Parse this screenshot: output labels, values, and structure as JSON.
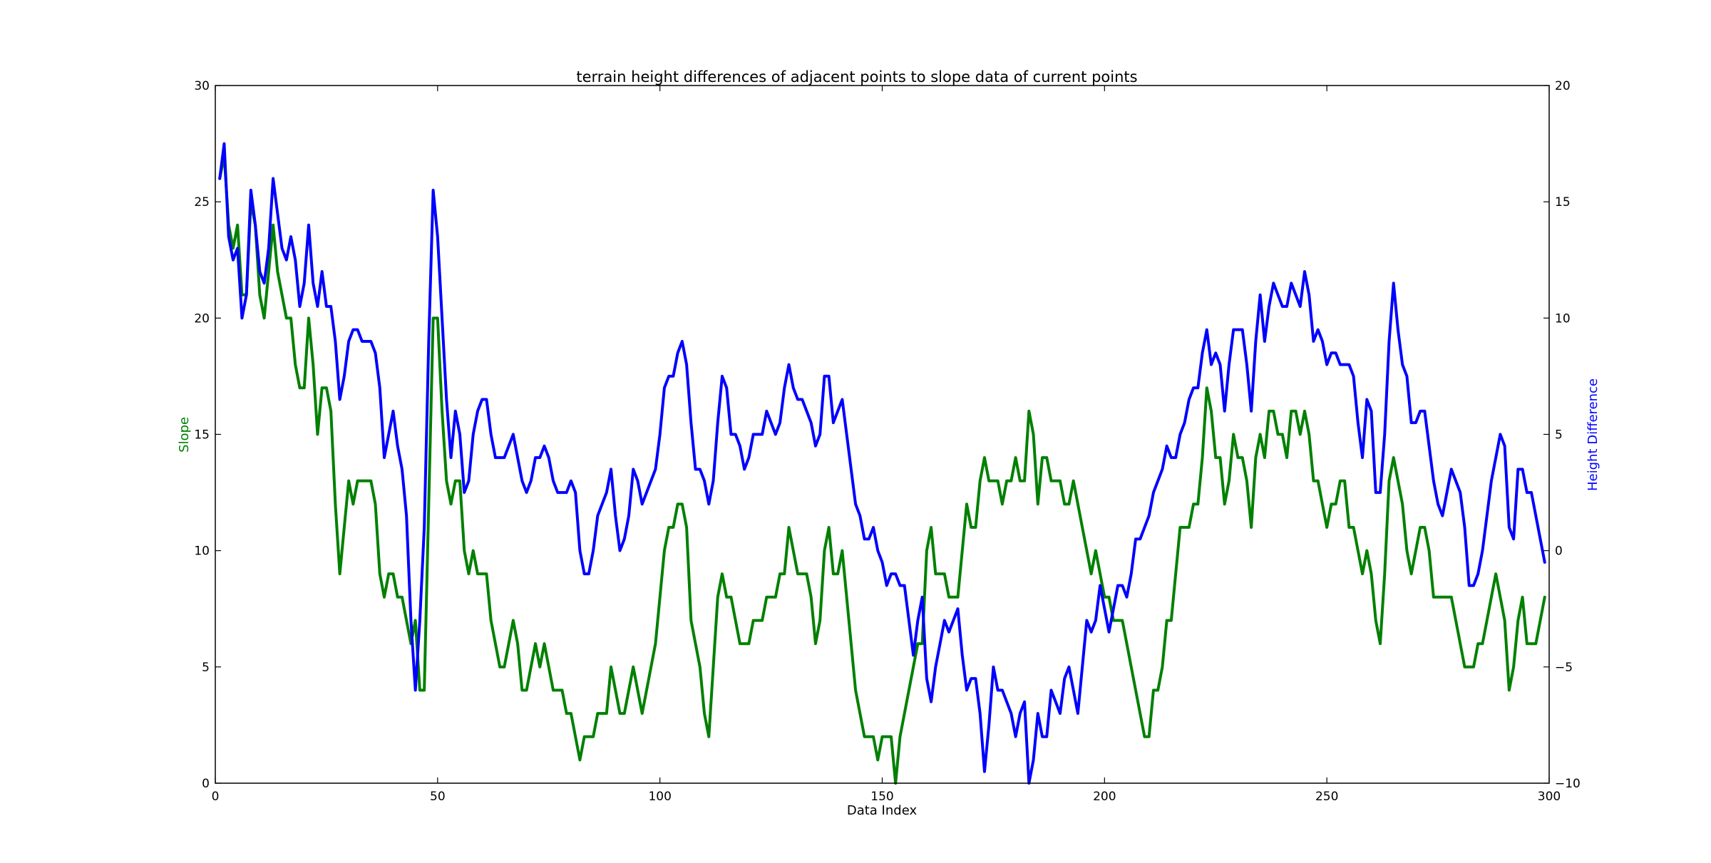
{
  "chart_data": {
    "type": "line",
    "title": "terrain height differences of adjacent points to slope data of current points",
    "xlabel": "Data Index",
    "ylabel_left": "Slope",
    "ylabel_right": "Height Difference",
    "xlim": [
      0,
      300
    ],
    "ylim_left": [
      0,
      30
    ],
    "ylim_right": [
      -10,
      20
    ],
    "xticks": [
      0,
      50,
      100,
      150,
      200,
      250,
      300
    ],
    "yticks_left": [
      0,
      5,
      10,
      15,
      20,
      25,
      30
    ],
    "yticks_right": [
      -10,
      -5,
      0,
      5,
      10,
      15,
      20
    ],
    "grid": false,
    "colors": {
      "slope": "#008000",
      "height_difference": "#0000ff"
    },
    "series": [
      {
        "axis": "left",
        "color": "#008000",
        "x": [
          1,
          2,
          3,
          4,
          5,
          6,
          7,
          8,
          9,
          10,
          11,
          12,
          13,
          14,
          15,
          16,
          17,
          18,
          19,
          20,
          21,
          22,
          23,
          24,
          25,
          26,
          27,
          28,
          29,
          30,
          31,
          32,
          33,
          34,
          35,
          36,
          37,
          38,
          39,
          40,
          41,
          42,
          43,
          44,
          45,
          46,
          47,
          48,
          49,
          50,
          51,
          52,
          53,
          54,
          55,
          56,
          57,
          58,
          59,
          60,
          61,
          62,
          63,
          64,
          65,
          66,
          67,
          68,
          69,
          70,
          71,
          72,
          73,
          74,
          75,
          76,
          77,
          78,
          79,
          80,
          81,
          82,
          83,
          84,
          85,
          86,
          87,
          88,
          89,
          90,
          91,
          92,
          93,
          94,
          95,
          96,
          97,
          98,
          99,
          100,
          101,
          102,
          103,
          104,
          105,
          106,
          107,
          108,
          109,
          110,
          111,
          112,
          113,
          114,
          115,
          116,
          117,
          118,
          119,
          120,
          121,
          122,
          123,
          124,
          125,
          126,
          127,
          128,
          129,
          130,
          131,
          132,
          133,
          134,
          135,
          136,
          137,
          138,
          139,
          140,
          141,
          142,
          143,
          144,
          145,
          146,
          147,
          148,
          149,
          150,
          151,
          152,
          153,
          154,
          155,
          156,
          157,
          158,
          159,
          160,
          161,
          162,
          163,
          164,
          165,
          166,
          167,
          168,
          169,
          170,
          171,
          172,
          173,
          174,
          175,
          176,
          177,
          178,
          179,
          180,
          181,
          182,
          183,
          184,
          185,
          186,
          187,
          188,
          189,
          190,
          191,
          192,
          193,
          194,
          195,
          196,
          197,
          198,
          199,
          200,
          201,
          202,
          203,
          204,
          205,
          206,
          207,
          208,
          209,
          210,
          211,
          212,
          213,
          214,
          215,
          216,
          217,
          218,
          219,
          220,
          221,
          222,
          223,
          224,
          225,
          226,
          227,
          228,
          229,
          230,
          231,
          232,
          233,
          234,
          235,
          236,
          237,
          238,
          239,
          240,
          241,
          242,
          243,
          244,
          245,
          246,
          247,
          248,
          249,
          250,
          251,
          252,
          253,
          254,
          255,
          256,
          257,
          258,
          259,
          260,
          261,
          262,
          263,
          264,
          265,
          266,
          267,
          268,
          269,
          270,
          271,
          272,
          273,
          274,
          275,
          276,
          277,
          278,
          279,
          280,
          281,
          282,
          283,
          284,
          285,
          286,
          287,
          288,
          289,
          290,
          291,
          292,
          293,
          294,
          295,
          296,
          297,
          298,
          299
        ],
        "y": [
          26,
          27,
          24,
          23,
          24,
          21,
          21,
          25,
          24,
          21,
          20,
          22,
          24,
          22,
          21,
          20,
          20,
          18,
          17,
          17,
          20,
          18,
          15,
          17,
          17,
          16,
          12,
          9,
          11,
          13,
          12,
          13,
          13,
          13,
          13,
          12,
          9,
          8,
          9,
          9,
          8,
          8,
          7,
          6,
          7,
          4,
          4,
          12,
          20,
          20,
          16,
          13,
          12,
          13,
          13,
          10,
          9,
          10,
          9,
          9,
          9,
          7,
          6,
          5,
          5,
          6,
          7,
          6,
          4,
          4,
          5,
          6,
          5,
          6,
          5,
          4,
          4,
          4,
          3,
          3,
          2,
          1,
          2,
          2,
          2,
          3,
          3,
          3,
          5,
          4,
          3,
          3,
          4,
          5,
          4,
          3,
          4,
          5,
          6,
          8,
          10,
          11,
          11,
          12,
          12,
          11,
          7,
          6,
          5,
          3,
          2,
          5,
          8,
          9,
          8,
          8,
          7,
          6,
          6,
          6,
          7,
          7,
          7,
          8,
          8,
          8,
          9,
          9,
          11,
          10,
          9,
          9,
          9,
          8,
          6,
          7,
          10,
          11,
          9,
          9,
          10,
          8,
          6,
          4,
          3,
          2,
          2,
          2,
          1,
          2,
          2,
          2,
          0,
          2,
          3,
          4,
          5,
          6,
          6,
          10,
          11,
          9,
          9,
          9,
          8,
          8,
          8,
          10,
          12,
          11,
          11,
          13,
          14,
          13,
          13,
          13,
          12,
          13,
          13,
          14,
          13,
          13,
          16,
          15,
          12,
          14,
          14,
          13,
          13,
          13,
          12,
          12,
          13,
          12,
          11,
          10,
          9,
          10,
          9,
          8,
          8,
          7,
          7,
          7,
          6,
          5,
          4,
          3,
          2,
          2,
          4,
          4,
          5,
          7,
          7,
          9,
          11,
          11,
          11,
          12,
          12,
          14,
          17,
          16,
          14,
          14,
          12,
          13,
          15,
          14,
          14,
          13,
          11,
          14,
          15,
          14,
          16,
          16,
          15,
          15,
          14,
          16,
          16,
          15,
          16,
          15,
          13,
          13,
          12,
          11,
          12,
          12,
          13,
          13,
          11,
          11,
          10,
          9,
          10,
          9,
          7,
          6,
          9,
          13,
          14,
          13,
          12,
          10,
          9,
          10,
          11,
          11,
          10,
          8,
          8,
          8,
          8,
          8,
          7,
          6,
          5,
          5,
          5,
          6,
          6,
          7,
          8,
          9,
          8,
          7,
          4,
          5,
          7,
          8,
          6,
          6,
          6,
          7,
          8
        ]
      },
      {
        "axis": "right",
        "color": "#0000ff",
        "x": [
          1,
          2,
          3,
          4,
          5,
          6,
          7,
          8,
          9,
          10,
          11,
          12,
          13,
          14,
          15,
          16,
          17,
          18,
          19,
          20,
          21,
          22,
          23,
          24,
          25,
          26,
          27,
          28,
          29,
          30,
          31,
          32,
          33,
          34,
          35,
          36,
          37,
          38,
          39,
          40,
          41,
          42,
          43,
          44,
          45,
          46,
          47,
          48,
          49,
          50,
          51,
          52,
          53,
          54,
          55,
          56,
          57,
          58,
          59,
          60,
          61,
          62,
          63,
          64,
          65,
          66,
          67,
          68,
          69,
          70,
          71,
          72,
          73,
          74,
          75,
          76,
          77,
          78,
          79,
          80,
          81,
          82,
          83,
          84,
          85,
          86,
          87,
          88,
          89,
          90,
          91,
          92,
          93,
          94,
          95,
          96,
          97,
          98,
          99,
          100,
          101,
          102,
          103,
          104,
          105,
          106,
          107,
          108,
          109,
          110,
          111,
          112,
          113,
          114,
          115,
          116,
          117,
          118,
          119,
          120,
          121,
          122,
          123,
          124,
          125,
          126,
          127,
          128,
          129,
          130,
          131,
          132,
          133,
          134,
          135,
          136,
          137,
          138,
          139,
          140,
          141,
          142,
          143,
          144,
          145,
          146,
          147,
          148,
          149,
          150,
          151,
          152,
          153,
          154,
          155,
          156,
          157,
          158,
          159,
          160,
          161,
          162,
          163,
          164,
          165,
          166,
          167,
          168,
          169,
          170,
          171,
          172,
          173,
          174,
          175,
          176,
          177,
          178,
          179,
          180,
          181,
          182,
          183,
          184,
          185,
          186,
          187,
          188,
          189,
          190,
          191,
          192,
          193,
          194,
          195,
          196,
          197,
          198,
          199,
          200,
          201,
          202,
          203,
          204,
          205,
          206,
          207,
          208,
          209,
          210,
          211,
          212,
          213,
          214,
          215,
          216,
          217,
          218,
          219,
          220,
          221,
          222,
          223,
          224,
          225,
          226,
          227,
          228,
          229,
          230,
          231,
          232,
          233,
          234,
          235,
          236,
          237,
          238,
          239,
          240,
          241,
          242,
          243,
          244,
          245,
          246,
          247,
          248,
          249,
          250,
          251,
          252,
          253,
          254,
          255,
          256,
          257,
          258,
          259,
          260,
          261,
          262,
          263,
          264,
          265,
          266,
          267,
          268,
          269,
          270,
          271,
          272,
          273,
          274,
          275,
          276,
          277,
          278,
          279,
          280,
          281,
          282,
          283,
          284,
          285,
          286,
          287,
          288,
          289,
          290,
          291,
          292,
          293,
          294,
          295,
          296,
          297,
          298,
          299
        ],
        "y": [
          16,
          17.5,
          13.5,
          12.5,
          13,
          10,
          11,
          15.5,
          14,
          12,
          11.5,
          13,
          16,
          14.5,
          13,
          12.5,
          13.5,
          12.5,
          10.5,
          11.5,
          14,
          11.5,
          10.5,
          12,
          10.5,
          10.5,
          9,
          6.5,
          7.5,
          9,
          9.5,
          9.5,
          9,
          9,
          9,
          8.5,
          7,
          4,
          5,
          6,
          4.5,
          3.5,
          1.5,
          -3,
          -6,
          -3,
          1,
          9,
          15.5,
          13.5,
          10,
          6.5,
          4,
          6,
          5,
          2.5,
          3,
          5,
          6,
          6.5,
          6.5,
          5,
          4,
          4,
          4,
          4.5,
          5,
          4,
          3,
          2.5,
          3,
          4,
          4,
          4.5,
          4,
          3,
          2.5,
          2.5,
          2.5,
          3,
          2.5,
          0,
          -1,
          -1,
          0,
          1.5,
          2,
          2.5,
          3.5,
          1.5,
          0,
          0.5,
          1.5,
          3.5,
          3,
          2,
          2.5,
          3,
          3.5,
          5,
          7,
          7.5,
          7.5,
          8.5,
          9,
          8,
          5.5,
          3.5,
          3.5,
          3,
          2,
          3,
          5.5,
          7.5,
          7,
          5,
          5,
          4.5,
          3.5,
          4,
          5,
          5,
          5,
          6,
          5.5,
          5,
          5.5,
          7,
          8,
          7,
          6.5,
          6.5,
          6,
          5.5,
          4.5,
          5,
          7.5,
          7.5,
          5.5,
          6,
          6.5,
          5,
          3.5,
          2,
          1.5,
          0.5,
          0.5,
          1,
          0,
          -0.5,
          -1.5,
          -1,
          -1,
          -1.5,
          -1.5,
          -3,
          -4.5,
          -3,
          -2,
          -5.5,
          -6.5,
          -5,
          -4,
          -3,
          -3.5,
          -3,
          -2.5,
          -4.5,
          -6,
          -5.5,
          -5.5,
          -7,
          -9.5,
          -7.5,
          -5,
          -6,
          -6,
          -6.5,
          -7,
          -8,
          -7,
          -6.5,
          -10,
          -9,
          -7,
          -8,
          -8,
          -6,
          -6.5,
          -7,
          -5.5,
          -5,
          -6,
          -7,
          -5,
          -3,
          -3.5,
          -3,
          -1.5,
          -2.5,
          -3.5,
          -2.5,
          -1.5,
          -1.5,
          -2,
          -1,
          0.5,
          0.5,
          1,
          1.5,
          2.5,
          3,
          3.5,
          4.5,
          4,
          4,
          5,
          5.5,
          6.5,
          7,
          7,
          8.5,
          9.5,
          8,
          8.5,
          8,
          6,
          8,
          9.5,
          9.5,
          9.5,
          8,
          6,
          9,
          11,
          9,
          10.5,
          11.5,
          11,
          10.5,
          10.5,
          11.5,
          11,
          10.5,
          12,
          11,
          9,
          9.5,
          9,
          8,
          8.5,
          8.5,
          8,
          8,
          8,
          7.5,
          5.5,
          4,
          6.5,
          6,
          2.5,
          2.5,
          5,
          9,
          11.5,
          9.5,
          8,
          7.5,
          5.5,
          5.5,
          6,
          6,
          4.5,
          3,
          2,
          1.5,
          2.5,
          3.5,
          3,
          2.5,
          1,
          -1.5,
          -1.5,
          -1,
          0,
          1.5,
          3,
          4,
          5,
          4.5,
          1,
          0.5,
          3.5,
          3.5,
          2.5,
          2.5,
          1.5,
          0.5,
          -0.5
        ]
      }
    ]
  }
}
